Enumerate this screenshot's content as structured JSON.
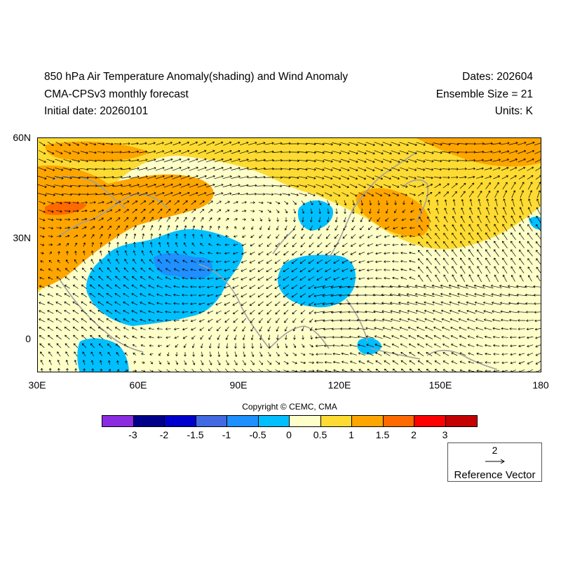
{
  "header": {
    "title_line1": "850 hPa Air Temperature Anomaly(shading) and Wind Anomaly",
    "title_line2": "CMA-CPSv3 monthly forecast",
    "title_line3": "Initial date: 20260101",
    "dates": "Dates: 202604",
    "ensemble": "Ensemble Size = 21",
    "units": "Units: K"
  },
  "axes": {
    "lat_labels": [
      "60N",
      "30N",
      "0"
    ],
    "lon_labels": [
      "30E",
      "60E",
      "90E",
      "120E",
      "150E",
      "180"
    ]
  },
  "copyright": "Copyright © CEMC, CMA",
  "colorbar": {
    "colors": [
      "#8b2be2",
      "#00008b",
      "#0000cd",
      "#4169e1",
      "#1e90ff",
      "#00bfff",
      "#fefec9",
      "#fedb32",
      "#fea500",
      "#fe6a00",
      "#fe0000",
      "#c40000"
    ],
    "labels": [
      "-3",
      "-2",
      "-1.5",
      "-1",
      "-0.5",
      "0",
      "0.5",
      "1",
      "1.5",
      "2",
      "3"
    ]
  },
  "reference_vector": {
    "value": "2",
    "label": "Reference Vector"
  },
  "map_colors": {
    "background": "#fefec9",
    "warm1": "#fedb32",
    "warm2": "#fea500",
    "warm3": "#fe6a00",
    "cold1": "#00bfff",
    "cold2": "#1e90ff",
    "coast": "#a0a0a0",
    "arrow": "#000000"
  }
}
